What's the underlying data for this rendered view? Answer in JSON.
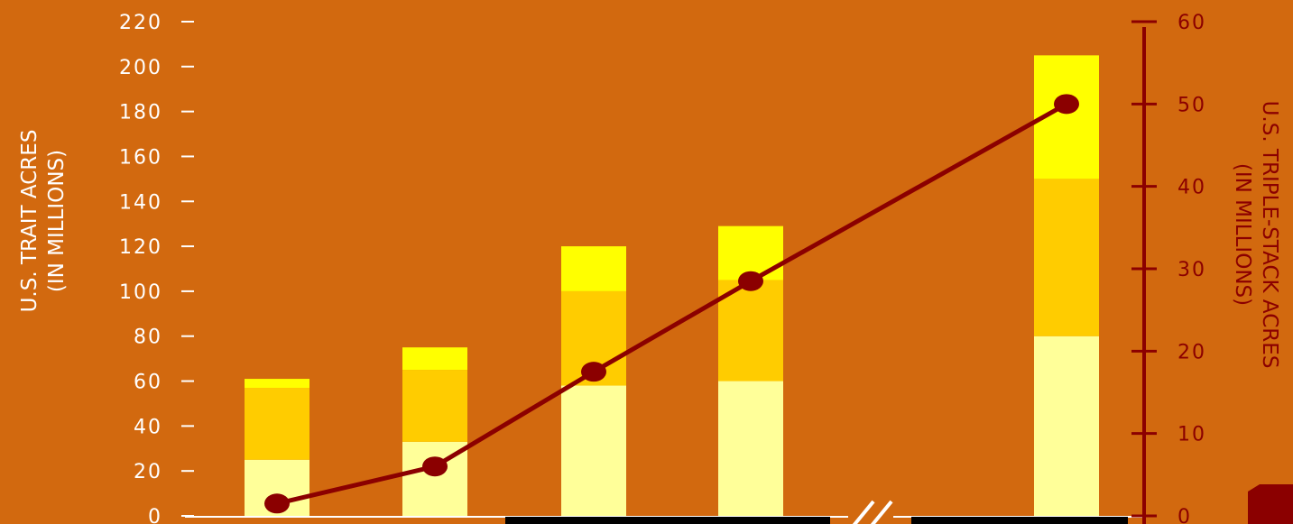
{
  "chart_data": {
    "type": "bar",
    "stacked": true,
    "categories": [
      "",
      "",
      "",
      "",
      ""
    ],
    "series": [
      {
        "values": [
          25,
          33,
          58,
          60,
          80
        ],
        "color": "#FFFF99"
      },
      {
        "values": [
          32,
          32,
          42,
          45,
          70
        ],
        "color": "#FFCC00"
      },
      {
        "values": [
          4,
          10,
          20,
          24,
          55
        ],
        "color": "#FFFF00"
      }
    ],
    "line": {
      "axis": "right",
      "color": "#8B0000",
      "values": [
        1.5,
        6,
        17.5,
        28.5,
        50
      ]
    },
    "ylabel": [
      "U.S. TRAIT ACRES",
      "(IN MILLIONS)"
    ],
    "y2label": [
      "U.S. TRIPLE-STACK ACRES",
      "(IN MILLIONS)"
    ],
    "ylim": [
      0,
      220
    ],
    "y2lim": [
      0,
      60
    ],
    "yticks": [
      "0",
      "20",
      "40",
      "60",
      "80",
      "100",
      "120",
      "140",
      "160",
      "180",
      "200",
      "220"
    ],
    "y2ticks": [
      "0",
      "10",
      "20",
      "30",
      "40",
      "50",
      "60"
    ],
    "axis_break": true,
    "colors": {
      "background": "#D2690F",
      "left_axis": "#ffffff",
      "right_axis": "#8B0000"
    }
  }
}
